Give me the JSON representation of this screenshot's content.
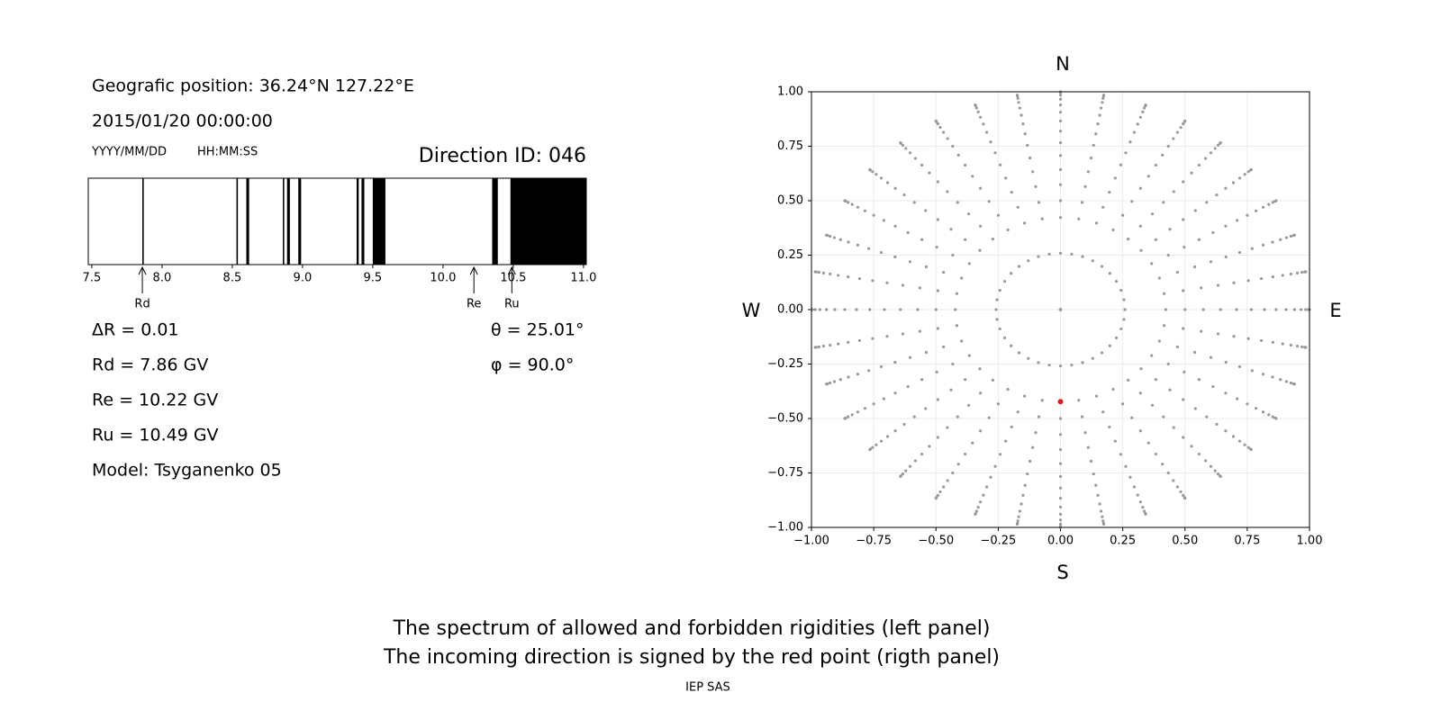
{
  "chart_data": [
    {
      "type": "spectrum",
      "position": "Geografic position: 36.24°N 127.22°E",
      "datetime": "2015/01/20 00:00:00",
      "date_format": "YYYY/MM/DD",
      "time_format": "HH:MM:SS",
      "title": "Direction ID: 046",
      "color": "#000000",
      "bands": [
        [
          7.86,
          7.87
        ],
        [
          8.53,
          8.54
        ],
        [
          8.6,
          8.62
        ],
        [
          8.86,
          8.87
        ],
        [
          8.89,
          8.91
        ],
        [
          8.97,
          8.99
        ],
        [
          9.385,
          9.4
        ],
        [
          9.42,
          9.44
        ],
        [
          9.5,
          9.59
        ],
        [
          10.35,
          10.39
        ],
        [
          10.48,
          11.02
        ]
      ],
      "xlim": [
        7.475,
        11.02
      ],
      "xticks": [
        7.5,
        {
          "value": 8.0,
          "label": "8.0"
        },
        8.5,
        {
          "value": 9.0,
          "label": "9.0"
        },
        9.5,
        {
          "value": 10.0,
          "label": "10.0"
        },
        10.5,
        {
          "value": 11.0,
          "label": "11.0"
        }
      ],
      "markers": [
        {
          "name": "Rd",
          "value": 7.86
        },
        {
          "name": "Re",
          "value": 10.22
        },
        {
          "name": "Ru",
          "value": 10.49
        }
      ],
      "annotations": [
        "ΔR = 0.01",
        "Rd = 7.86 GV",
        "Re = 10.22 GV",
        "Ru = 10.49 GV",
        "Model: Tsyganenko 05"
      ],
      "angles": [
        "θ = 25.01°",
        "φ = 90.0°"
      ]
    },
    {
      "type": "sky",
      "zenith_angles": [
        0,
        15,
        25,
        30,
        35,
        40,
        45,
        50,
        55,
        60,
        65,
        70,
        75,
        80,
        85,
        90
      ],
      "azimuths": [
        0,
        10,
        20,
        30,
        40,
        50,
        60,
        70,
        80,
        90,
        100,
        110,
        120,
        130,
        140,
        150,
        160,
        170,
        180,
        190,
        200,
        210,
        220,
        230,
        240,
        250,
        260,
        270,
        280,
        290,
        300,
        310,
        320,
        330,
        340,
        350
      ],
      "color": "#999999",
      "highlight": {
        "theta": 25.01,
        "phi": 90.0,
        "color": "#e41a1c"
      },
      "xlim": [
        -1,
        1
      ],
      "ylim": [
        -1,
        1
      ],
      "xticks": [
        {
          "value": -1,
          "label": "−1.00"
        },
        {
          "value": -0.75,
          "label": "−0.75"
        },
        {
          "value": -0.5,
          "label": "−0.50"
        },
        {
          "value": -0.25,
          "label": "−0.25"
        },
        {
          "value": 0,
          "label": "0.00"
        },
        {
          "value": 0.25,
          "label": "0.25"
        },
        {
          "value": 0.5,
          "label": "0.50"
        },
        {
          "value": 0.75,
          "label": "0.75"
        },
        {
          "value": 1,
          "label": "1.00"
        }
      ],
      "yticks": [
        {
          "value": -1,
          "label": "−1.00"
        },
        {
          "value": -0.75,
          "label": "−0.75"
        },
        {
          "value": -0.5,
          "label": "−0.50"
        },
        {
          "value": -0.25,
          "label": "−0.25"
        },
        {
          "value": 0,
          "label": "0.00"
        },
        {
          "value": 0.25,
          "label": "0.25"
        },
        {
          "value": 0.5,
          "label": "0.50"
        },
        {
          "value": 0.75,
          "label": "0.75"
        },
        {
          "value": 1,
          "label": "1.00"
        }
      ],
      "grid": true,
      "compass": {
        "N": "N",
        "S": "S",
        "W": "W",
        "E": "E"
      }
    }
  ],
  "caption": [
    "The spectrum of allowed and forbidden rigidities (left panel)",
    "The incoming direction is signed by the red point (rigth panel)"
  ],
  "footer": "IEP SAS"
}
